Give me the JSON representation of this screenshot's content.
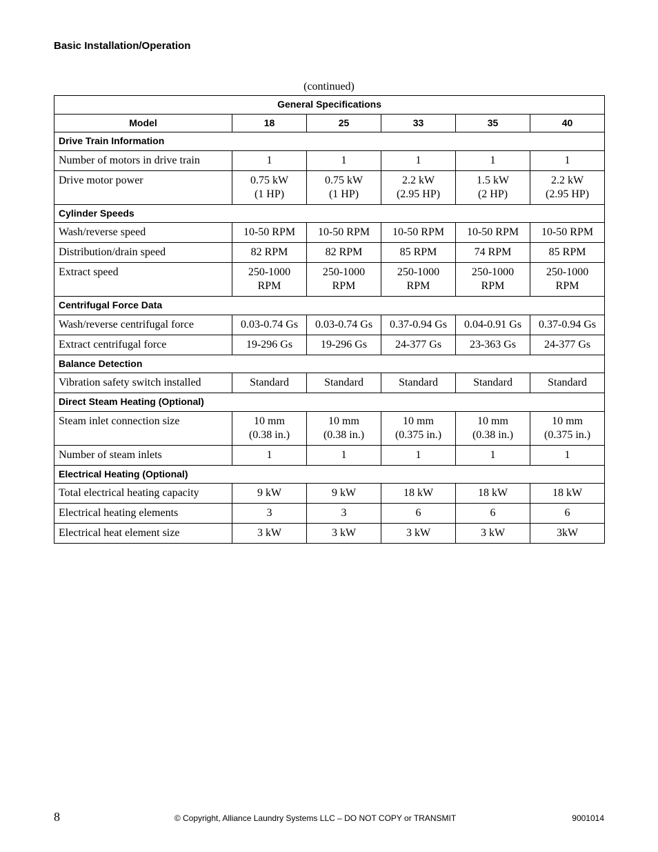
{
  "page_heading": "Basic Installation/Operation",
  "continued_label": "(continued)",
  "table": {
    "title": "General Specifications",
    "model_label": "Model",
    "models": [
      "18",
      "25",
      "33",
      "35",
      "40"
    ],
    "sections": [
      {
        "name": "Drive Train Information",
        "rows": [
          {
            "label": "Number of motors in drive train",
            "values": [
              "1",
              "1",
              "1",
              "1",
              "1"
            ]
          },
          {
            "label": "Drive motor power",
            "values": [
              "0.75 kW\n(1 HP)",
              "0.75 kW\n(1 HP)",
              "2.2 kW\n(2.95 HP)",
              "1.5 kW\n(2 HP)",
              "2.2 kW\n(2.95 HP)"
            ]
          }
        ]
      },
      {
        "name": "Cylinder Speeds",
        "rows": [
          {
            "label": "Wash/reverse speed",
            "values": [
              "10-50 RPM",
              "10-50 RPM",
              "10-50 RPM",
              "10-50 RPM",
              "10-50 RPM"
            ]
          },
          {
            "label": "Distribution/drain speed",
            "values": [
              "82 RPM",
              "82 RPM",
              "85 RPM",
              "74 RPM",
              "85 RPM"
            ]
          },
          {
            "label": "Extract speed",
            "values": [
              "250-1000 RPM",
              "250-1000 RPM",
              "250-1000 RPM",
              "250-1000 RPM",
              "250-1000 RPM"
            ]
          }
        ]
      },
      {
        "name": "Centrifugal Force Data",
        "rows": [
          {
            "label": "Wash/reverse centrifugal force",
            "values": [
              "0.03-0.74 Gs",
              "0.03-0.74 Gs",
              "0.37-0.94 Gs",
              "0.04-0.91 Gs",
              "0.37-0.94 Gs"
            ]
          },
          {
            "label": "Extract centrifugal force",
            "values": [
              "19-296 Gs",
              "19-296 Gs",
              "24-377 Gs",
              "23-363 Gs",
              "24-377 Gs"
            ]
          }
        ]
      },
      {
        "name": "Balance Detection",
        "rows": [
          {
            "label": "Vibration safety switch installed",
            "values": [
              "Standard",
              "Standard",
              "Standard",
              "Standard",
              "Standard"
            ]
          }
        ]
      },
      {
        "name": "Direct Steam Heating (Optional)",
        "rows": [
          {
            "label": "Steam inlet connection size",
            "values": [
              "10 mm\n(0.38 in.)",
              "10 mm\n(0.38 in.)",
              "10 mm\n(0.375 in.)",
              "10 mm\n(0.38 in.)",
              "10 mm\n(0.375 in.)"
            ]
          },
          {
            "label": "Number of steam inlets",
            "values": [
              "1",
              "1",
              "1",
              "1",
              "1"
            ]
          }
        ]
      },
      {
        "name": "Electrical Heating (Optional)",
        "rows": [
          {
            "label": "Total electrical heating capacity",
            "values": [
              "9 kW",
              "9 kW",
              "18 kW",
              "18 kW",
              "18 kW"
            ]
          },
          {
            "label": "Electrical heating elements",
            "values": [
              "3",
              "3",
              "6",
              "6",
              "6"
            ]
          },
          {
            "label": "Electrical heat element size",
            "values": [
              "3 kW",
              "3 kW",
              "3 kW",
              "3 kW",
              "3kW"
            ]
          }
        ]
      }
    ]
  },
  "footer": {
    "page_number": "8",
    "copyright": "© Copyright, Alliance Laundry Systems LLC – DO NOT COPY or TRANSMIT",
    "doc_number": "9001014"
  }
}
